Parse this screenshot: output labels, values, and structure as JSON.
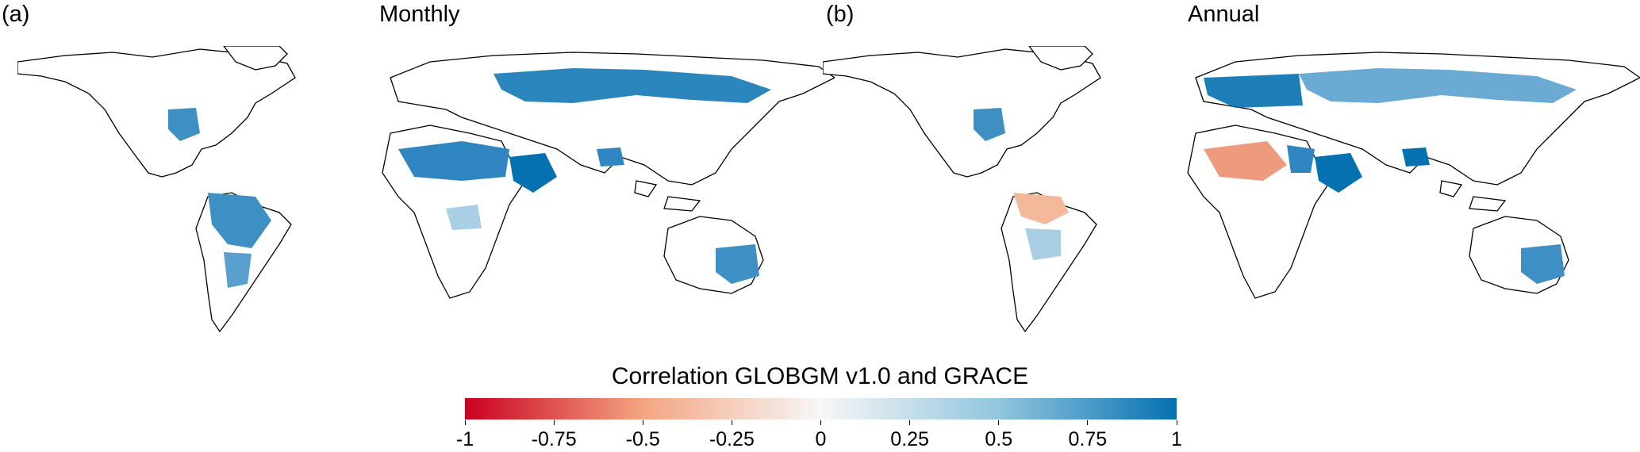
{
  "panels": [
    {
      "letter": "(a)",
      "title": "Monthly"
    },
    {
      "letter": "(b)",
      "title": "Annual"
    }
  ],
  "colorbar": {
    "title": "Correlation GLOBGM v1.0 and GRACE",
    "min": -1,
    "max": 1,
    "ticks": [
      "-1",
      "-0.75",
      "-0.5",
      "-0.25",
      "0",
      "0.25",
      "0.5",
      "0.75",
      "1"
    ],
    "colors": [
      "#ca0020",
      "#f4a582",
      "#f7f7f7",
      "#92c5de",
      "#0571b0"
    ]
  },
  "map_style": {
    "land": "#ffffff",
    "outline": "#000000"
  }
}
